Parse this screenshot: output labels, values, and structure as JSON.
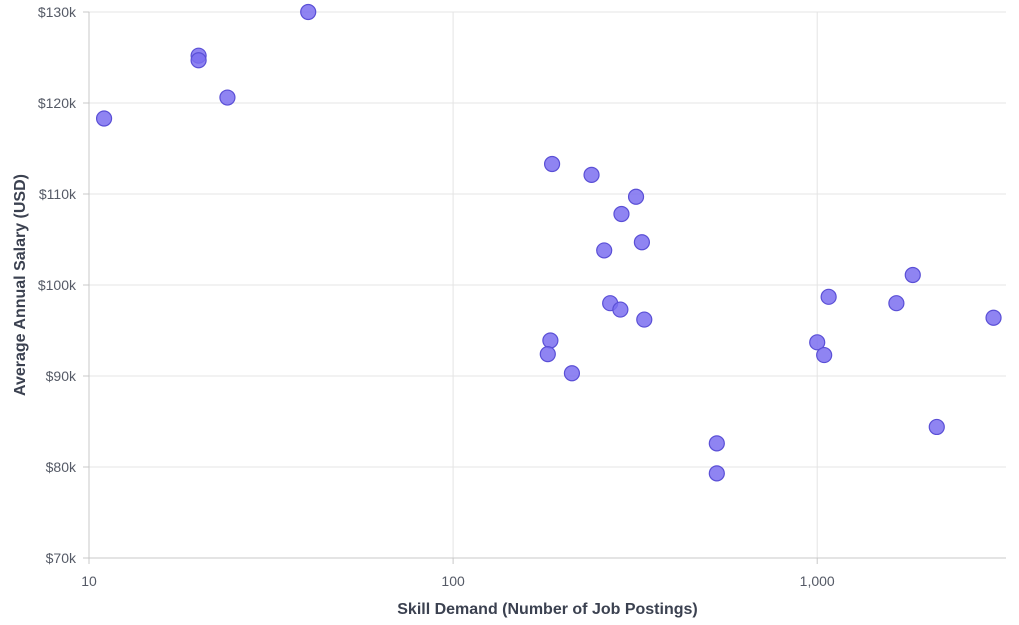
{
  "chart_data": {
    "type": "scatter",
    "xlabel": "Skill Demand (Number of Job Postings)",
    "ylabel": "Average Annual Salary (USD)",
    "x_scale": "log",
    "xlim": [
      10,
      3300
    ],
    "ylim": [
      70000,
      130000
    ],
    "x_ticks": [
      {
        "value": 10,
        "label": "10"
      },
      {
        "value": 100,
        "label": "100"
      },
      {
        "value": 1000,
        "label": "1,000"
      }
    ],
    "y_ticks": [
      {
        "value": 70000,
        "label": "$70k"
      },
      {
        "value": 80000,
        "label": "$80k"
      },
      {
        "value": 90000,
        "label": "$90k"
      },
      {
        "value": 100000,
        "label": "$100k"
      },
      {
        "value": 110000,
        "label": "$110k"
      },
      {
        "value": 120000,
        "label": "$120k"
      },
      {
        "value": 130000,
        "label": "$130k"
      }
    ],
    "grid": true,
    "marker_fill": "#7b6ff0",
    "marker_stroke": "#5a4fd6",
    "points": [
      {
        "x": 11,
        "y": 118300
      },
      {
        "x": 20,
        "y": 125200
      },
      {
        "x": 20,
        "y": 124700
      },
      {
        "x": 24,
        "y": 120600
      },
      {
        "x": 40,
        "y": 130000
      },
      {
        "x": 187,
        "y": 113300
      },
      {
        "x": 240,
        "y": 112100
      },
      {
        "x": 318,
        "y": 109700
      },
      {
        "x": 290,
        "y": 107800
      },
      {
        "x": 330,
        "y": 104700
      },
      {
        "x": 260,
        "y": 103800
      },
      {
        "x": 270,
        "y": 98000
      },
      {
        "x": 288,
        "y": 97300
      },
      {
        "x": 335,
        "y": 96200
      },
      {
        "x": 185,
        "y": 93900
      },
      {
        "x": 182,
        "y": 92400
      },
      {
        "x": 212,
        "y": 90300
      },
      {
        "x": 530,
        "y": 82600
      },
      {
        "x": 530,
        "y": 79300
      },
      {
        "x": 1000,
        "y": 93700
      },
      {
        "x": 1045,
        "y": 92300
      },
      {
        "x": 1075,
        "y": 98700
      },
      {
        "x": 1650,
        "y": 98000
      },
      {
        "x": 1830,
        "y": 101100
      },
      {
        "x": 2130,
        "y": 84400
      },
      {
        "x": 3050,
        "y": 96400
      }
    ]
  }
}
